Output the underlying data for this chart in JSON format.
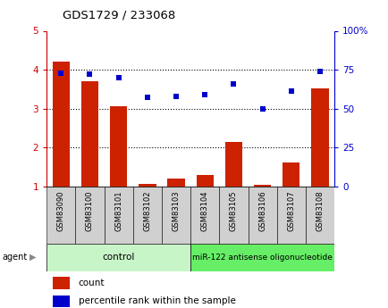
{
  "title": "GDS1729 / 233068",
  "samples": [
    "GSM83090",
    "GSM83100",
    "GSM83101",
    "GSM83102",
    "GSM83103",
    "GSM83104",
    "GSM83105",
    "GSM83106",
    "GSM83107",
    "GSM83108"
  ],
  "count_values": [
    4.2,
    3.7,
    3.05,
    1.07,
    1.2,
    1.3,
    2.15,
    1.03,
    1.62,
    3.52
  ],
  "percentile_values": [
    73,
    72,
    70,
    57,
    58,
    59,
    66,
    50,
    61,
    74
  ],
  "n_control": 5,
  "n_treatment": 5,
  "control_label": "control",
  "treatment_label": "miR-122 antisense oligonucleotide",
  "agent_label": "agent",
  "left_ylim": [
    1,
    5
  ],
  "right_ylim": [
    0,
    100
  ],
  "left_yticks": [
    1,
    2,
    3,
    4,
    5
  ],
  "right_yticks": [
    0,
    25,
    50,
    75,
    100
  ],
  "right_yticklabels": [
    "0",
    "25",
    "50",
    "75",
    "100%"
  ],
  "bar_color": "#cc2200",
  "dot_color": "#0000cc",
  "control_bg": "#c8f5c8",
  "treatment_bg": "#66ee66",
  "tick_bg": "#d0d0d0",
  "legend_count_label": "count",
  "legend_percentile_label": "percentile rank within the sample",
  "hgrid_at": [
    2,
    3,
    4
  ],
  "left_tick_color": "#cc0000",
  "right_tick_color": "#0000cc"
}
